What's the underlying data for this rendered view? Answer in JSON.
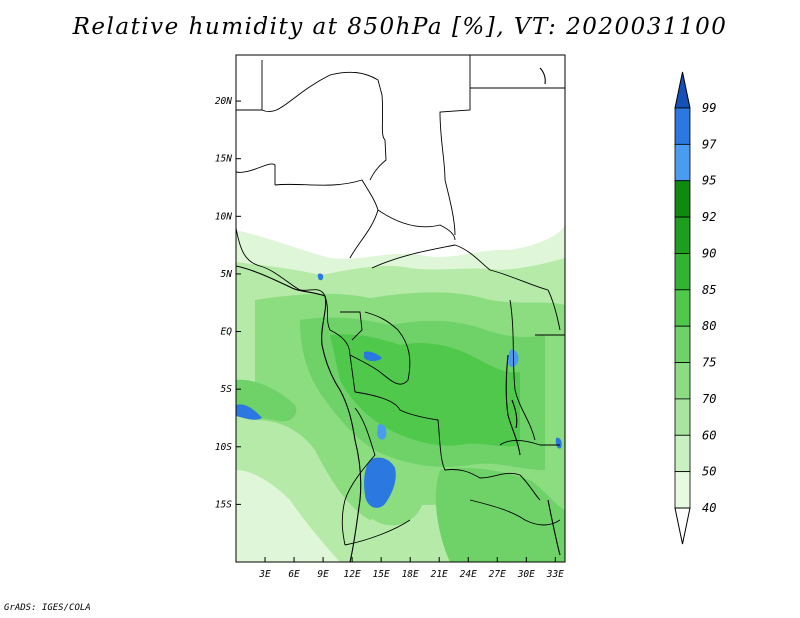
{
  "title": "Relative humidity at 850hPa [%], VT: 2020031100",
  "credit": "GrADS: IGES/COLA",
  "map": {
    "lon_range": [
      0,
      34
    ],
    "lat_range": [
      -20,
      24
    ],
    "x_ticks": [
      {
        "value": 3,
        "label": "3E"
      },
      {
        "value": 6,
        "label": "6E"
      },
      {
        "value": 9,
        "label": "9E"
      },
      {
        "value": 12,
        "label": "12E"
      },
      {
        "value": 15,
        "label": "15E"
      },
      {
        "value": 18,
        "label": "18E"
      },
      {
        "value": 21,
        "label": "21E"
      },
      {
        "value": 24,
        "label": "24E"
      },
      {
        "value": 27,
        "label": "27E"
      },
      {
        "value": 30,
        "label": "30E"
      },
      {
        "value": 33,
        "label": "33E"
      }
    ],
    "y_ticks": [
      {
        "value": 20,
        "label": "20N"
      },
      {
        "value": 15,
        "label": "15N"
      },
      {
        "value": 10,
        "label": "10N"
      },
      {
        "value": 5,
        "label": "5N"
      },
      {
        "value": 0,
        "label": "EQ"
      },
      {
        "value": -5,
        "label": "5S"
      },
      {
        "value": -10,
        "label": "10S"
      },
      {
        "value": -15,
        "label": "15S"
      }
    ]
  },
  "colorbar": {
    "levels": [
      "40",
      "50",
      "60",
      "70",
      "75",
      "80",
      "85",
      "90",
      "92",
      "95",
      "97",
      "99"
    ],
    "colors": [
      "#ffffff",
      "#e6fae0",
      "#c8f0c0",
      "#a8e6a0",
      "#8cdc84",
      "#6ed268",
      "#50c84c",
      "#32b432",
      "#1e9e1e",
      "#0f8a0f",
      "#4a9cf0",
      "#2a78e0",
      "#1450b8"
    ]
  }
}
